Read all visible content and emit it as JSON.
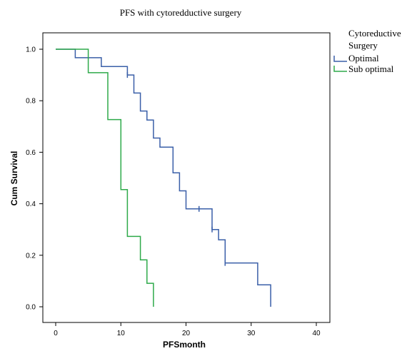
{
  "chart_data": {
    "type": "line",
    "title": "PFS with cytoredductive surgery",
    "xlabel": "PFSmonth",
    "ylabel": "Cum Survival",
    "xlim": [
      0,
      40
    ],
    "ylim": [
      0.0,
      1.0
    ],
    "x_ticks": [
      "0",
      "10",
      "20",
      "30",
      "40"
    ],
    "y_ticks": [
      "0.0",
      "0.2",
      "0.4",
      "0.6",
      "0.8",
      "1.0"
    ],
    "grid": false,
    "legend": {
      "title_line1": "Cytoreductive",
      "title_line2": "Surgery",
      "placement": "outside-right"
    },
    "colors": {
      "optimal": "#3a5fa8",
      "suboptimal": "#2eaa4a"
    },
    "series": [
      {
        "name": "Optimal",
        "step_points": [
          [
            0,
            1.0
          ],
          [
            3,
            1.0
          ],
          [
            3,
            0.967
          ],
          [
            7,
            0.967
          ],
          [
            7,
            0.933
          ],
          [
            11,
            0.933
          ],
          [
            11,
            0.9
          ],
          [
            12,
            0.9
          ],
          [
            12,
            0.83
          ],
          [
            13,
            0.83
          ],
          [
            13,
            0.76
          ],
          [
            14,
            0.76
          ],
          [
            14,
            0.725
          ],
          [
            15,
            0.725
          ],
          [
            15,
            0.655
          ],
          [
            16,
            0.655
          ],
          [
            16,
            0.62
          ],
          [
            18,
            0.62
          ],
          [
            18,
            0.52
          ],
          [
            19,
            0.52
          ],
          [
            19,
            0.45
          ],
          [
            20,
            0.45
          ],
          [
            20,
            0.38
          ],
          [
            24,
            0.38
          ],
          [
            24,
            0.3
          ],
          [
            25,
            0.3
          ],
          [
            25,
            0.26
          ],
          [
            26,
            0.26
          ],
          [
            26,
            0.17
          ],
          [
            31,
            0.17
          ],
          [
            31,
            0.085
          ],
          [
            33,
            0.085
          ],
          [
            33,
            0.0
          ]
        ],
        "censored": [
          [
            11,
            0.9
          ],
          [
            22,
            0.38
          ],
          [
            24,
            0.3
          ],
          [
            26,
            0.17
          ]
        ]
      },
      {
        "name": "Sub optimal",
        "step_points": [
          [
            0,
            1.0
          ],
          [
            5,
            1.0
          ],
          [
            5,
            0.909
          ],
          [
            8,
            0.909
          ],
          [
            8,
            0.727
          ],
          [
            10,
            0.727
          ],
          [
            10,
            0.455
          ],
          [
            11,
            0.455
          ],
          [
            11,
            0.273
          ],
          [
            13,
            0.273
          ],
          [
            13,
            0.182
          ],
          [
            14,
            0.182
          ],
          [
            14,
            0.091
          ],
          [
            15,
            0.091
          ],
          [
            15,
            0.0
          ]
        ],
        "censored": []
      }
    ]
  }
}
